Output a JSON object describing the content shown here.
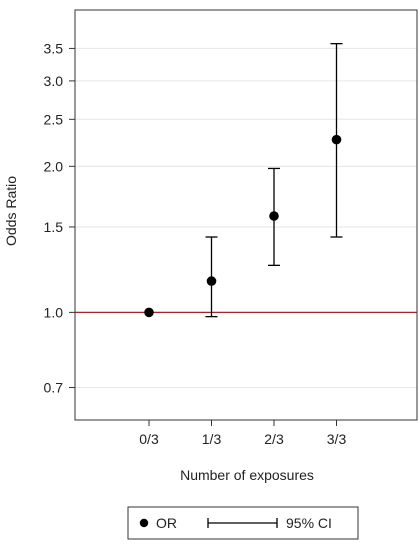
{
  "chart_data": {
    "type": "scatter",
    "title": "",
    "xlabel": "Number of exposures",
    "ylabel": "Odds Ratio",
    "categories": [
      "0/3",
      "1/3",
      "2/3",
      "3/3"
    ],
    "y_scale": "log",
    "ylim": [
      0.6,
      4.2
    ],
    "y_ticks": [
      "0.7",
      "1.0",
      "1.5",
      "2.0",
      "2.5",
      "3.0",
      "3.5"
    ],
    "y_tick_values": [
      0.7,
      1.0,
      1.5,
      2.0,
      2.5,
      3.0,
      3.5
    ],
    "grid": true,
    "reference_line": {
      "y": 1.0,
      "color": "#a3242f"
    },
    "series": [
      {
        "name": "OR",
        "values": [
          1.0,
          1.16,
          1.58,
          2.27
        ],
        "ci_lower": [
          1.0,
          0.98,
          1.25,
          1.43
        ],
        "ci_upper": [
          1.0,
          1.43,
          1.98,
          3.58
        ]
      }
    ],
    "legend": {
      "position": "bottom",
      "items": [
        {
          "label": "OR",
          "symbol": "point"
        },
        {
          "label": "95% CI",
          "symbol": "errorbar"
        }
      ]
    },
    "colors": {
      "point": "#000000",
      "errorbar": "#000000",
      "grid": "#e6e6e6",
      "axis": "#333333"
    }
  }
}
